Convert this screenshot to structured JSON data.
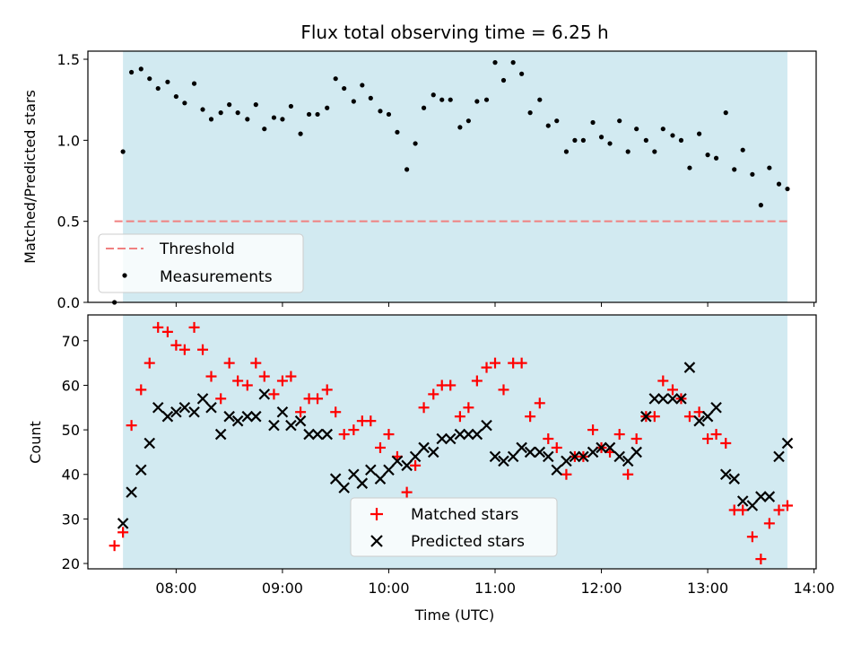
{
  "chart_data": {
    "type": "scatter",
    "title": "Flux total observing time = 6.25 h",
    "xlabel": "Time (UTC)",
    "x_tick_labels": [
      "08:00",
      "09:00",
      "10:00",
      "11:00",
      "12:00",
      "13:00",
      "14:00"
    ],
    "x_ticks_hours": [
      8,
      9,
      10,
      11,
      12,
      13,
      14
    ],
    "xlim_hours": [
      7.17,
      14.02
    ],
    "observing_window_hours": [
      7.5,
      13.75
    ],
    "colors": {
      "window": "#add8e6",
      "threshold": "#f08080",
      "matched": "#ff0000",
      "predicted": "#000000",
      "measurements": "#000000"
    },
    "panels": [
      {
        "id": "ratio",
        "ylabel": "Matched/Predicted stars",
        "ylim": [
          0,
          1.55
        ],
        "y_ticks": [
          "0.0",
          "0.5",
          "1.0",
          "1.5"
        ],
        "y_tick_values": [
          0,
          0.5,
          1.0,
          1.5
        ],
        "legend": [
          "Threshold",
          "Measurements"
        ],
        "threshold": {
          "name": "Threshold",
          "value": 0.5,
          "x_range_hours": [
            7.42,
            13.75
          ]
        },
        "series": [
          {
            "name": "Measurements",
            "marker": "dot",
            "x_hours": [
              7.42,
              7.5,
              7.58,
              7.67,
              7.75,
              7.83,
              7.92,
              8.0,
              8.08,
              8.17,
              8.25,
              8.33,
              8.42,
              8.5,
              8.58,
              8.67,
              8.75,
              8.83,
              8.92,
              9.0,
              9.08,
              9.17,
              9.25,
              9.33,
              9.42,
              9.5,
              9.58,
              9.67,
              9.75,
              9.83,
              9.92,
              10.0,
              10.08,
              10.17,
              10.25,
              10.33,
              10.42,
              10.5,
              10.58,
              10.67,
              10.75,
              10.83,
              10.92,
              11.0,
              11.08,
              11.17,
              11.25,
              11.33,
              11.42,
              11.5,
              11.58,
              11.67,
              11.75,
              11.83,
              11.92,
              12.0,
              12.08,
              12.17,
              12.25,
              12.33,
              12.42,
              12.5,
              12.58,
              12.67,
              12.75,
              12.83,
              12.92,
              13.0,
              13.08,
              13.17,
              13.25,
              13.33,
              13.42,
              13.5,
              13.58,
              13.67,
              13.75
            ],
            "values": [
              0,
              0.93,
              1.42,
              1.44,
              1.38,
              1.32,
              1.36,
              1.27,
              1.23,
              1.35,
              1.19,
              1.13,
              1.17,
              1.22,
              1.17,
              1.13,
              1.22,
              1.07,
              1.14,
              1.13,
              1.21,
              1.04,
              1.16,
              1.16,
              1.2,
              1.38,
              1.32,
              1.24,
              1.34,
              1.26,
              1.18,
              1.16,
              1.05,
              0.82,
              0.98,
              1.2,
              1.28,
              1.25,
              1.25,
              1.08,
              1.12,
              1.24,
              1.25,
              1.48,
              1.37,
              1.48,
              1.41,
              1.17,
              1.25,
              1.09,
              1.12,
              0.93,
              1.0,
              1.0,
              1.11,
              1.02,
              0.98,
              1.12,
              0.93,
              1.07,
              1.0,
              0.93,
              1.07,
              1.03,
              1.0,
              0.83,
              1.04,
              0.91,
              0.89,
              1.17,
              0.82,
              0.94,
              0.79,
              0.6,
              0.83,
              0.73,
              0.7
            ]
          }
        ]
      },
      {
        "id": "counts",
        "ylabel": "Count",
        "ylim": [
          18.8,
          75.8
        ],
        "y_ticks": [
          "20",
          "30",
          "40",
          "50",
          "60",
          "70"
        ],
        "y_tick_values": [
          20,
          30,
          40,
          50,
          60,
          70
        ],
        "legend": [
          "Matched stars",
          "Predicted stars"
        ],
        "series": [
          {
            "name": "Matched stars",
            "marker": "plus",
            "x_hours": [
              7.42,
              7.5,
              7.58,
              7.67,
              7.75,
              7.83,
              7.92,
              8.0,
              8.08,
              8.17,
              8.25,
              8.33,
              8.42,
              8.5,
              8.58,
              8.67,
              8.75,
              8.83,
              8.92,
              9.0,
              9.08,
              9.17,
              9.25,
              9.33,
              9.42,
              9.5,
              9.58,
              9.67,
              9.75,
              9.83,
              9.92,
              10.0,
              10.08,
              10.17,
              10.25,
              10.33,
              10.42,
              10.5,
              10.58,
              10.67,
              10.75,
              10.83,
              10.92,
              11.0,
              11.08,
              11.17,
              11.25,
              11.33,
              11.42,
              11.5,
              11.58,
              11.67,
              11.75,
              11.83,
              11.92,
              12.0,
              12.08,
              12.17,
              12.25,
              12.33,
              12.42,
              12.5,
              12.58,
              12.67,
              12.75,
              12.83,
              12.92,
              13.0,
              13.08,
              13.17,
              13.25,
              13.33,
              13.42,
              13.5,
              13.58,
              13.67,
              13.75
            ],
            "values": [
              24,
              27,
              51,
              59,
              65,
              73,
              72,
              69,
              68,
              73,
              68,
              62,
              57,
              65,
              61,
              60,
              65,
              62,
              58,
              61,
              62,
              54,
              57,
              57,
              59,
              54,
              49,
              50,
              52,
              52,
              46,
              49,
              44,
              36,
              42,
              55,
              58,
              60,
              60,
              53,
              55,
              61,
              64,
              65,
              59,
              65,
              65,
              53,
              56,
              48,
              46,
              40,
              44,
              44,
              50,
              46,
              45,
              49,
              40,
              48,
              53,
              53,
              61,
              59,
              57,
              53,
              54,
              48,
              49,
              47,
              32,
              32,
              26,
              21,
              29,
              32,
              33
            ]
          },
          {
            "name": "Predicted stars",
            "marker": "x",
            "x_hours": [
              7.5,
              7.58,
              7.67,
              7.75,
              7.83,
              7.92,
              8.0,
              8.08,
              8.17,
              8.25,
              8.33,
              8.42,
              8.5,
              8.58,
              8.67,
              8.75,
              8.83,
              8.92,
              9.0,
              9.08,
              9.17,
              9.25,
              9.33,
              9.42,
              9.5,
              9.58,
              9.67,
              9.75,
              9.83,
              9.92,
              10.0,
              10.08,
              10.17,
              10.25,
              10.33,
              10.42,
              10.5,
              10.58,
              10.67,
              10.75,
              10.83,
              10.92,
              11.0,
              11.08,
              11.17,
              11.25,
              11.33,
              11.42,
              11.5,
              11.58,
              11.67,
              11.75,
              11.83,
              11.92,
              12.0,
              12.08,
              12.17,
              12.25,
              12.33,
              12.42,
              12.5,
              12.58,
              12.67,
              12.75,
              12.83,
              12.92,
              13.0,
              13.08,
              13.17,
              13.25,
              13.33,
              13.42,
              13.5,
              13.58,
              13.67,
              13.75
            ],
            "values": [
              29,
              36,
              41,
              47,
              55,
              53,
              54,
              55,
              54,
              57,
              55,
              49,
              53,
              52,
              53,
              53,
              58,
              51,
              54,
              51,
              52,
              49,
              49,
              49,
              39,
              37,
              40,
              38,
              41,
              39,
              41,
              43,
              42,
              44,
              46,
              45,
              48,
              48,
              49,
              49,
              49,
              51,
              44,
              43,
              44,
              46,
              45,
              45,
              44,
              41,
              43,
              44,
              44,
              45,
              46,
              46,
              44,
              43,
              45,
              53,
              57,
              57,
              57,
              57,
              64,
              52,
              53,
              55,
              40,
              39,
              34,
              33,
              35,
              35,
              44,
              47
            ]
          }
        ]
      }
    ]
  }
}
